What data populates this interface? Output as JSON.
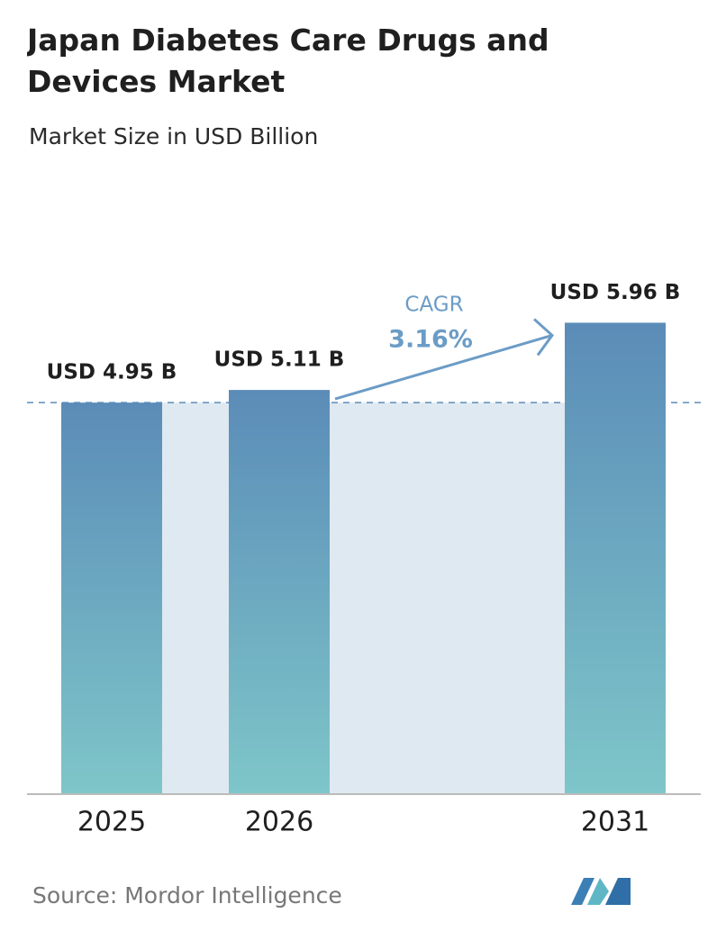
{
  "chart_data": {
    "type": "bar",
    "title": "Japan Diabetes Care Drugs and Devices Market",
    "subtitle": "Market Size in USD Billion",
    "categories": [
      "2025",
      "2026",
      "2031"
    ],
    "values": [
      4.95,
      5.11,
      5.96
    ],
    "value_labels": [
      "USD 4.95 B",
      "USD 5.11 B",
      "USD 5.96 B"
    ],
    "ylim": [
      0,
      6.5
    ],
    "annotation": {
      "label": "CAGR",
      "value": "3.16%"
    },
    "source": "Source:  Mordor Intelligence"
  }
}
